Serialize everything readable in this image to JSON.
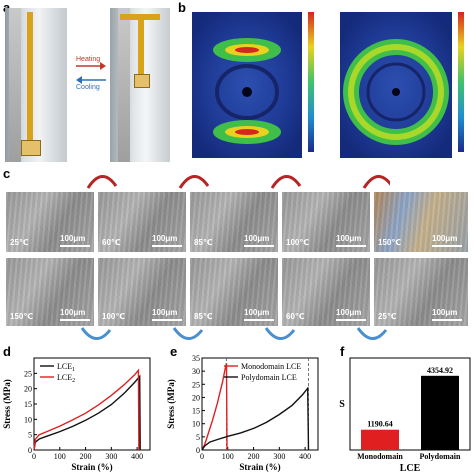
{
  "panels": {
    "a": {
      "label": "a",
      "arrow_top": "Heating",
      "arrow_bottom": "Cooling",
      "colors": {
        "heating": "#c0392b",
        "cooling": "#2f6fb3"
      }
    },
    "b": {
      "label": "b"
    },
    "c": {
      "label": "c",
      "scale_bar": "100μm",
      "top_row": [
        "25℃",
        "60℃",
        "85℃",
        "100℃",
        "150℃"
      ],
      "bottom_row": [
        "150℃",
        "100℃",
        "85℃",
        "60℃",
        "25℃"
      ]
    },
    "d": {
      "label": "d"
    },
    "e": {
      "label": "e"
    },
    "f": {
      "label": "f"
    }
  },
  "chart_data": [
    {
      "panel": "d",
      "type": "line",
      "xlabel": "Strain (%)",
      "ylabel": "Stress (MPa)",
      "xlim": [
        0,
        450
      ],
      "ylim": [
        0,
        30
      ],
      "xticks": [
        0,
        100,
        200,
        300,
        400
      ],
      "yticks": [
        0,
        5,
        10,
        15,
        20,
        25
      ],
      "legend": "top-left",
      "series": [
        {
          "name": "LCE",
          "subscript": "1",
          "color": "#111111",
          "x": [
            0,
            5,
            20,
            50,
            100,
            150,
            200,
            250,
            300,
            350,
            390,
            410,
            412
          ],
          "y": [
            0,
            2.5,
            3.6,
            4.5,
            6,
            7.7,
            9.7,
            12,
            14.8,
            18.5,
            22,
            24,
            0
          ]
        },
        {
          "name": "LCE",
          "subscript": "2",
          "color": "#e02020",
          "x": [
            0,
            5,
            20,
            50,
            100,
            150,
            200,
            250,
            300,
            350,
            390,
            405,
            407
          ],
          "y": [
            0,
            3.5,
            5,
            6,
            7.8,
            9.8,
            12,
            14.7,
            17.8,
            21.3,
            24.5,
            26,
            0
          ]
        }
      ]
    },
    {
      "panel": "e",
      "type": "line",
      "xlabel": "Strain (%)",
      "ylabel": "Stress (MPa)",
      "xlim": [
        0,
        450
      ],
      "ylim": [
        0,
        35
      ],
      "xticks": [
        0,
        100,
        200,
        300,
        400
      ],
      "yticks": [
        0,
        5,
        10,
        15,
        20,
        25,
        30,
        35
      ],
      "legend": "top-right",
      "series": [
        {
          "name": "Monodomain LCE",
          "color": "#e02020",
          "x": [
            0,
            10,
            20,
            30,
            40,
            50,
            60,
            70,
            80,
            90,
            95,
            97
          ],
          "y": [
            0,
            2,
            5,
            8,
            11,
            14.5,
            18,
            22,
            26,
            31,
            33,
            0
          ]
        },
        {
          "name": "Polydomain LCE",
          "color": "#111111",
          "x": [
            0,
            10,
            30,
            60,
            100,
            150,
            200,
            250,
            300,
            350,
            390,
            410,
            413
          ],
          "y": [
            0,
            1.5,
            3,
            4,
            5.2,
            6.5,
            8.2,
            10.5,
            13.5,
            17,
            21,
            23.5,
            0
          ]
        }
      ],
      "dashed_x": [
        95,
        413
      ]
    },
    {
      "panel": "f",
      "type": "bar",
      "categories": [
        "Monodomain",
        "Polydomain"
      ],
      "values": [
        1190.64,
        4354.92
      ],
      "value_labels": [
        "1190.64",
        "4354.92"
      ],
      "colors": [
        "#e02020",
        "#000000"
      ],
      "xlabel": "LCE",
      "ylabel": "S",
      "ylim": [
        0,
        5400
      ]
    }
  ]
}
